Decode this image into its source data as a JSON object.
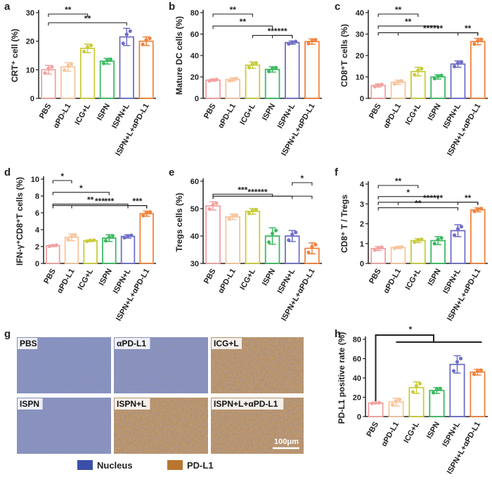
{
  "categories": [
    "PBS",
    "αPD-L1",
    "ICG+L",
    "ISPN",
    "ISPN+L",
    "ISPN+L+αPD-L1"
  ],
  "colors": [
    "#f3a1a1",
    "#f7c59c",
    "#c9cc3d",
    "#3dba62",
    "#6f6fc9",
    "#f0843e"
  ],
  "chart_data": [
    {
      "panel": "a",
      "type": "bar",
      "ylabel": "CRT⁺ cell (%)",
      "ylim": [
        0,
        30
      ],
      "yticks": [
        0,
        10,
        20,
        30
      ],
      "values": [
        10,
        11,
        17.5,
        13,
        21.5,
        20
      ],
      "err": [
        1.5,
        1.5,
        1.5,
        1,
        3,
        1.5
      ],
      "sig": [
        {
          "a": 0,
          "b": 2,
          "label": "**"
        },
        {
          "a": 0,
          "b": 4,
          "label": "**"
        }
      ]
    },
    {
      "panel": "b",
      "type": "bar",
      "ylabel": "Mature DC cells (%)",
      "ylim": [
        0,
        80
      ],
      "yticks": [
        0,
        20,
        40,
        60,
        80
      ],
      "values": [
        17,
        17.5,
        31,
        27,
        52,
        53
      ],
      "err": [
        1,
        1.5,
        3,
        2.5,
        1.5,
        2.5
      ],
      "sig": [
        {
          "a": 0,
          "b": 2,
          "label": "**"
        },
        {
          "a": 0,
          "b": 3,
          "label": "**"
        },
        {
          "a": 3,
          "b": 4,
          "label": "***"
        },
        {
          "a": 2,
          "b": 4,
          "label": "***"
        }
      ]
    },
    {
      "panel": "c",
      "type": "bar",
      "ylabel": "CD8⁺T cells (%)",
      "ylim": [
        0,
        40
      ],
      "yticks": [
        0,
        10,
        20,
        30,
        40
      ],
      "values": [
        6,
        7.5,
        12.5,
        10,
        16,
        26.5
      ],
      "err": [
        0.7,
        1,
        2,
        1,
        1.5,
        1.5
      ],
      "sig": [
        {
          "a": 0,
          "b": 2,
          "label": "**"
        },
        {
          "a": 0,
          "b": 3,
          "label": "**"
        },
        {
          "a": 4,
          "b": 5,
          "label": "**"
        },
        {
          "a": 1,
          "b": 5,
          "label": "***"
        },
        {
          "a": 0,
          "b": 5,
          "label": "***"
        }
      ]
    },
    {
      "panel": "d",
      "type": "bar",
      "ylabel": "IFN-γ⁺CD8⁺T cells (%)",
      "ylim": [
        0,
        10
      ],
      "yticks": [
        0,
        2,
        4,
        6,
        8,
        10
      ],
      "values": [
        2.1,
        3.1,
        2.7,
        3,
        3.2,
        5.9
      ],
      "err": [
        0.1,
        0.4,
        0.1,
        0.4,
        0.2,
        0.3
      ],
      "sig": [
        {
          "a": 0,
          "b": 1,
          "label": "*"
        },
        {
          "a": 0,
          "b": 3,
          "label": "*"
        },
        {
          "a": 0,
          "b": 4,
          "label": "**"
        },
        {
          "a": 4,
          "b": 5,
          "label": "***"
        },
        {
          "a": 1,
          "b": 5,
          "label": "***"
        },
        {
          "a": 0,
          "b": 5,
          "label": "***"
        }
      ]
    },
    {
      "panel": "e",
      "type": "bar",
      "ylabel": "Tregs cells (%)",
      "ylim": [
        30,
        60
      ],
      "yticks": [
        30,
        40,
        50,
        60
      ],
      "values": [
        51,
        47,
        49,
        40,
        40,
        35.5
      ],
      "err": [
        1.5,
        1,
        1,
        3,
        2,
        2
      ],
      "sig": [
        {
          "a": 4,
          "b": 5,
          "label": "*"
        },
        {
          "a": 0,
          "b": 3,
          "label": "***"
        },
        {
          "a": 0,
          "b": 4,
          "label": "***"
        },
        {
          "a": 0,
          "b": 5,
          "label": "***"
        }
      ]
    },
    {
      "panel": "f",
      "type": "bar",
      "ylabel": "CD8⁺ T / Tregs",
      "ylim": [
        0,
        4
      ],
      "yticks": [
        0,
        1,
        2,
        3,
        4
      ],
      "values": [
        0.75,
        0.8,
        1.15,
        1.15,
        1.65,
        2.7
      ],
      "err": [
        0.1,
        0.05,
        0.1,
        0.2,
        0.3,
        0.1
      ],
      "sig": [
        {
          "a": 0,
          "b": 2,
          "label": "**"
        },
        {
          "a": 0,
          "b": 3,
          "label": "*"
        },
        {
          "a": 0,
          "b": 4,
          "label": "**"
        },
        {
          "a": 4,
          "b": 5,
          "label": "**"
        },
        {
          "a": 1,
          "b": 5,
          "label": "***"
        },
        {
          "a": 0,
          "b": 5,
          "label": "***"
        }
      ]
    },
    {
      "panel": "h",
      "type": "bar",
      "ylabel": "PD-L1 positive rate (%)",
      "ylim": [
        0,
        80
      ],
      "yticks": [
        0,
        20,
        40,
        60,
        80
      ],
      "values": [
        14,
        15,
        30,
        27,
        54,
        46
      ],
      "err": [
        0.5,
        4,
        6,
        3,
        9,
        3
      ],
      "sig": [
        {
          "a": 0,
          "b": 5,
          "label": "*"
        }
      ]
    }
  ],
  "micrographs": {
    "panel": "g",
    "captions": [
      "PBS",
      "αPD-L1",
      "ICG+L",
      "ISPN",
      "ISPN+L",
      "ISPN+L+αPD-L1"
    ],
    "scale_bar": "100μm",
    "legend": [
      {
        "label": "Nucleus",
        "color": "#3b4fa8"
      },
      {
        "label": "PD-L1",
        "color": "#b8762e"
      }
    ]
  }
}
